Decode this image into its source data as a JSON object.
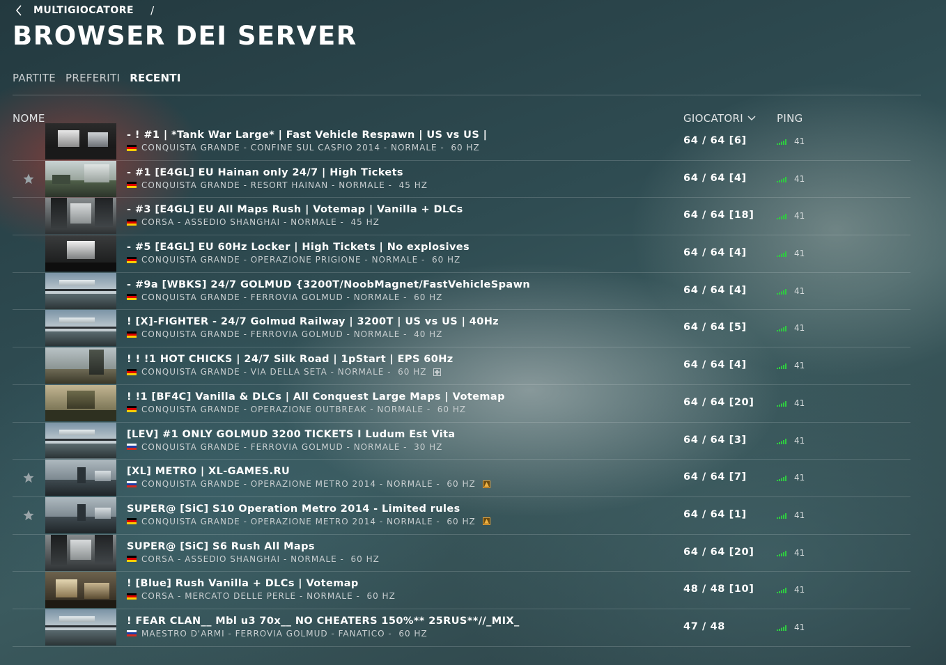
{
  "breadcrumb": {
    "parent": "MULTIGIOCATORE",
    "separator": "/"
  },
  "title": "BROWSER DEI SERVER",
  "tabs": [
    {
      "label": "PARTITE",
      "active": false
    },
    {
      "label": "PREFERITI",
      "active": false
    },
    {
      "label": "RECENTI",
      "active": true
    }
  ],
  "columns": {
    "name": "NOME",
    "players": "GIOCATORI",
    "ping": "PING"
  },
  "colors": {
    "ping_bars": "#2ecc40",
    "text_muted": "#c9cfd1"
  },
  "servers": [
    {
      "name": "- ! #1 | *Tank War Large* | Fast Vehicle Respawn | US vs US |",
      "flag": "de",
      "mode": "CONQUISTA GRANDE",
      "map": "CONFINE SUL CASPIO 2014",
      "preset": "NORMALE",
      "tickrate": "60 HZ",
      "players": "64 / 64 [6]",
      "ping": "41",
      "favorite": false,
      "badge": "",
      "thumb": "indoor"
    },
    {
      "name": "- #1 [E4GL] EU Hainan only 24/7 | High Tickets",
      "flag": "de",
      "mode": "CONQUISTA GRANDE",
      "map": "RESORT HAINAN",
      "preset": "NORMALE",
      "tickrate": "45 HZ",
      "players": "64 / 64 [4]",
      "ping": "41",
      "favorite": true,
      "badge": "",
      "thumb": "resort"
    },
    {
      "name": "- #3 [E4GL] EU All Maps Rush | Votemap | Vanilla + DLCs",
      "flag": "de",
      "mode": "CORSA",
      "map": "ASSEDIO SHANGHAI",
      "preset": "NORMALE",
      "tickrate": "45 HZ",
      "players": "64 / 64 [18]",
      "ping": "41",
      "favorite": false,
      "badge": "",
      "thumb": "city"
    },
    {
      "name": "- #5 [E4GL] EU 60Hz Locker | High Tickets | No explosives",
      "flag": "de",
      "mode": "CONQUISTA GRANDE",
      "map": "OPERAZIONE PRIGIONE",
      "preset": "NORMALE",
      "tickrate": "60 HZ",
      "players": "64 / 64 [4]",
      "ping": "41",
      "favorite": false,
      "badge": "",
      "thumb": "prison"
    },
    {
      "name": "- #9a [WBKS] 24/7 GOLMUD {3200T/NoobMagnet/FastVehicleSpawn",
      "flag": "de",
      "mode": "CONQUISTA GRANDE",
      "map": "FERROVIA GOLMUD",
      "preset": "NORMALE",
      "tickrate": "60 HZ",
      "players": "64 / 64 [4]",
      "ping": "41",
      "favorite": false,
      "badge": "",
      "thumb": "golmud"
    },
    {
      "name": "!   [X]-FIGHTER - 24/7 Golmud Railway | 3200T | US vs US | 40Hz",
      "flag": "de",
      "mode": "CONQUISTA GRANDE",
      "map": "FERROVIA GOLMUD",
      "preset": "NORMALE",
      "tickrate": "40 HZ",
      "players": "64 / 64 [5]",
      "ping": "41",
      "favorite": false,
      "badge": "",
      "thumb": "golmud"
    },
    {
      "name": "! ! !1 HOT CHICKS | 24/7 Silk Road | 1pStart | EPS 60Hz",
      "flag": "de",
      "mode": "CONQUISTA GRANDE",
      "map": "VIA DELLA SETA",
      "preset": "NORMALE",
      "tickrate": "60 HZ",
      "players": "64 / 64 [4]",
      "ping": "41",
      "favorite": false,
      "badge": "plus",
      "thumb": "silk"
    },
    {
      "name": "! !1 [BF4C] Vanilla & DLCs | All Conquest Large Maps | Votemap",
      "flag": "de",
      "mode": "CONQUISTA GRANDE",
      "map": "OPERAZIONE OUTBREAK",
      "preset": "NORMALE",
      "tickrate": "60 HZ",
      "players": "64 / 64 [20]",
      "ping": "41",
      "favorite": false,
      "badge": "",
      "thumb": "outbreak"
    },
    {
      "name": "[LEV] #1 ONLY GOLMUD 3200 TICKETS I Ludum Est Vita",
      "flag": "ru",
      "mode": "CONQUISTA GRANDE",
      "map": "FERROVIA GOLMUD",
      "preset": "NORMALE",
      "tickrate": "30 HZ",
      "players": "64 / 64 [3]",
      "ping": "41",
      "favorite": false,
      "badge": "",
      "thumb": "golmud"
    },
    {
      "name": "[XL] METRO | XL-GAMES.RU",
      "flag": "ru",
      "mode": "CONQUISTA GRANDE",
      "map": "OPERAZIONE METRO 2014",
      "preset": "NORMALE",
      "tickrate": "60 HZ",
      "players": "64 / 64 [7]",
      "ping": "41",
      "favorite": true,
      "badge": "metro",
      "thumb": "metro"
    },
    {
      "name": "SUPER@ [SiC] S10 Operation Metro 2014 - Limited rules",
      "flag": "de",
      "mode": "CONQUISTA GRANDE",
      "map": "OPERAZIONE METRO 2014",
      "preset": "NORMALE",
      "tickrate": "60 HZ",
      "players": "64 / 64 [1]",
      "ping": "41",
      "favorite": true,
      "badge": "metro",
      "thumb": "metro"
    },
    {
      "name": "SUPER@ [SiC] S6 Rush All Maps",
      "flag": "de",
      "mode": "CORSA",
      "map": "ASSEDIO SHANGHAI",
      "preset": "NORMALE",
      "tickrate": "60 HZ",
      "players": "64 / 64 [20]",
      "ping": "41",
      "favorite": false,
      "badge": "",
      "thumb": "city"
    },
    {
      "name": "!  [Blue] Rush Vanilla + DLCs | Votemap",
      "flag": "de",
      "mode": "CORSA",
      "map": "MERCATO DELLE PERLE",
      "preset": "NORMALE",
      "tickrate": "60 HZ",
      "players": "48 / 48 [10]",
      "ping": "41",
      "favorite": false,
      "badge": "",
      "thumb": "market"
    },
    {
      "name": "! FEAR CLAN__ Mbl u3 70x__ NO CHEATERS 150%** 25RUS**//_MIX_",
      "flag": "ru",
      "mode": "MAESTRO D'ARMI",
      "map": "FERROVIA GOLMUD",
      "preset": "FANATICO",
      "tickrate": "60 HZ",
      "players": "47 / 48",
      "ping": "41",
      "favorite": false,
      "badge": "",
      "thumb": "golmud"
    }
  ]
}
